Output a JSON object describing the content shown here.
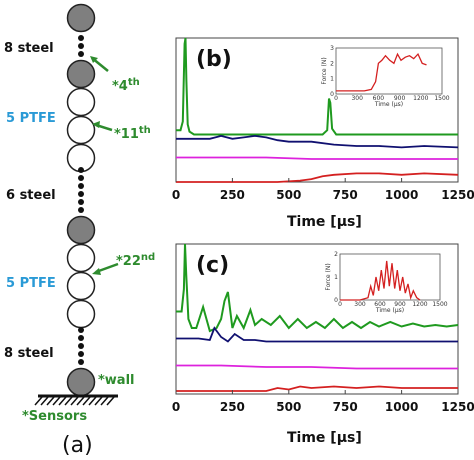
{
  "chain": {
    "labels": {
      "steel_top": "8 steel",
      "ptfe_top": "5 PTFE",
      "steel_mid": "6 steel",
      "ptfe_bottom": "5 PTFE",
      "steel_bottom": "8 steel"
    },
    "sensor_labels": {
      "s4": "*4",
      "s4_sup": "th",
      "s11": "*11",
      "s11_sup": "th",
      "s22": "*22",
      "s22_sup": "nd",
      "wall": "*wall",
      "sensors": "*Sensors"
    },
    "panel_label": "(a)",
    "colors": {
      "steel": "#7f7f7f",
      "ptfe": "#ffffff",
      "green": "#2e8b2e",
      "blue": "#2a9ad6"
    }
  },
  "chart_data": [
    {
      "type": "line",
      "panel": "(b)",
      "xlabel": "Time [μs]",
      "xlim": [
        0,
        1250
      ],
      "xticks": [
        0,
        250,
        500,
        750,
        1000,
        1250
      ],
      "series": [
        {
          "color": "#1f9a1f",
          "x": [
            0,
            20,
            30,
            38,
            42,
            46,
            52,
            60,
            80,
            150,
            300,
            500,
            650,
            670,
            678,
            684,
            692,
            710,
            800,
            1000,
            1250
          ],
          "y": [
            0.36,
            0.36,
            0.42,
            0.96,
            1.0,
            0.7,
            0.4,
            0.35,
            0.33,
            0.33,
            0.33,
            0.33,
            0.33,
            0.36,
            0.58,
            0.55,
            0.37,
            0.33,
            0.33,
            0.33,
            0.33
          ]
        },
        {
          "color": "#101070",
          "x": [
            0,
            100,
            150,
            200,
            250,
            300,
            350,
            400,
            450,
            500,
            600,
            700,
            800,
            900,
            1000,
            1100,
            1250
          ],
          "y": [
            0.3,
            0.3,
            0.3,
            0.32,
            0.3,
            0.31,
            0.32,
            0.31,
            0.29,
            0.28,
            0.28,
            0.26,
            0.25,
            0.25,
            0.24,
            0.25,
            0.24
          ]
        },
        {
          "color": "#dd22dd",
          "x": [
            0,
            200,
            400,
            600,
            800,
            1000,
            1250
          ],
          "y": [
            0.17,
            0.17,
            0.17,
            0.16,
            0.16,
            0.16,
            0.16
          ]
        },
        {
          "color": "#d42020",
          "x": [
            0,
            400,
            450,
            550,
            600,
            650,
            700,
            800,
            900,
            1000,
            1100,
            1250
          ],
          "y": [
            0.0,
            0.0,
            0.0,
            0.01,
            0.02,
            0.04,
            0.05,
            0.06,
            0.06,
            0.05,
            0.06,
            0.05
          ]
        }
      ],
      "inset": {
        "xlabel": "Time (μs)",
        "ylabel": "Force (N)",
        "xticks": [
          0,
          300,
          600,
          900,
          1200,
          1500
        ],
        "yticks": [
          0,
          1,
          2,
          3
        ],
        "ylim": [
          0,
          3
        ],
        "x": [
          0,
          200,
          400,
          500,
          560,
          600,
          650,
          700,
          760,
          820,
          870,
          920,
          980,
          1040,
          1100,
          1160,
          1220,
          1280
        ],
        "y": [
          0.2,
          0.2,
          0.2,
          0.3,
          0.8,
          2.0,
          2.2,
          2.5,
          2.2,
          2.0,
          2.6,
          2.2,
          2.4,
          2.5,
          2.3,
          2.6,
          2.0,
          1.9
        ],
        "color": "#d42020"
      }
    },
    {
      "type": "line",
      "panel": "(c)",
      "xlabel": "Time [μs]",
      "xlim": [
        0,
        1250
      ],
      "xticks": [
        0,
        250,
        500,
        750,
        1000,
        1250
      ],
      "series": [
        {
          "color": "#1f9a1f",
          "x": [
            0,
            25,
            35,
            40,
            45,
            55,
            70,
            90,
            120,
            150,
            180,
            200,
            215,
            230,
            250,
            270,
            300,
            330,
            350,
            380,
            420,
            460,
            500,
            540,
            580,
            620,
            660,
            700,
            740,
            780,
            820,
            860,
            900,
            950,
            1000,
            1050,
            1100,
            1150,
            1200,
            1250
          ],
          "y": [
            0.55,
            0.55,
            0.7,
            1.0,
            0.8,
            0.5,
            0.44,
            0.44,
            0.58,
            0.42,
            0.44,
            0.5,
            0.62,
            0.68,
            0.44,
            0.52,
            0.44,
            0.56,
            0.46,
            0.5,
            0.46,
            0.52,
            0.44,
            0.5,
            0.44,
            0.48,
            0.44,
            0.5,
            0.44,
            0.48,
            0.44,
            0.48,
            0.45,
            0.48,
            0.45,
            0.47,
            0.45,
            0.46,
            0.45,
            0.46
          ]
        },
        {
          "color": "#101070",
          "x": [
            0,
            100,
            150,
            170,
            200,
            230,
            260,
            300,
            350,
            400,
            500,
            600,
            700,
            800,
            900,
            1000,
            1100,
            1250
          ],
          "y": [
            0.37,
            0.37,
            0.36,
            0.44,
            0.38,
            0.35,
            0.4,
            0.36,
            0.36,
            0.35,
            0.35,
            0.35,
            0.35,
            0.35,
            0.35,
            0.35,
            0.35,
            0.35
          ]
        },
        {
          "color": "#dd22dd",
          "x": [
            0,
            200,
            400,
            600,
            800,
            1000,
            1250
          ],
          "y": [
            0.19,
            0.19,
            0.18,
            0.18,
            0.17,
            0.17,
            0.17
          ]
        },
        {
          "color": "#d42020",
          "x": [
            0,
            400,
            450,
            500,
            550,
            600,
            700,
            800,
            900,
            1000,
            1100,
            1250
          ],
          "y": [
            0.02,
            0.02,
            0.04,
            0.03,
            0.05,
            0.04,
            0.05,
            0.04,
            0.05,
            0.04,
            0.04,
            0.04
          ]
        }
      ],
      "inset": {
        "xlabel": "Time (μs)",
        "ylabel": "Force (N)",
        "xticks": [
          0,
          300,
          600,
          900,
          1200,
          1500
        ],
        "yticks": [
          0,
          1,
          2
        ],
        "ylim": [
          0,
          2
        ],
        "x": [
          0,
          300,
          420,
          460,
          500,
          540,
          580,
          620,
          660,
          700,
          740,
          780,
          820,
          860,
          900,
          940,
          980,
          1020,
          1060,
          1100,
          1150,
          1200
        ],
        "y": [
          0.0,
          0.0,
          0.1,
          0.6,
          0.2,
          1.0,
          0.4,
          1.3,
          0.5,
          1.7,
          0.6,
          1.6,
          0.5,
          1.3,
          0.4,
          1.0,
          0.3,
          0.7,
          0.1,
          0.4,
          0.1,
          0.0
        ],
        "color": "#d42020"
      }
    }
  ]
}
